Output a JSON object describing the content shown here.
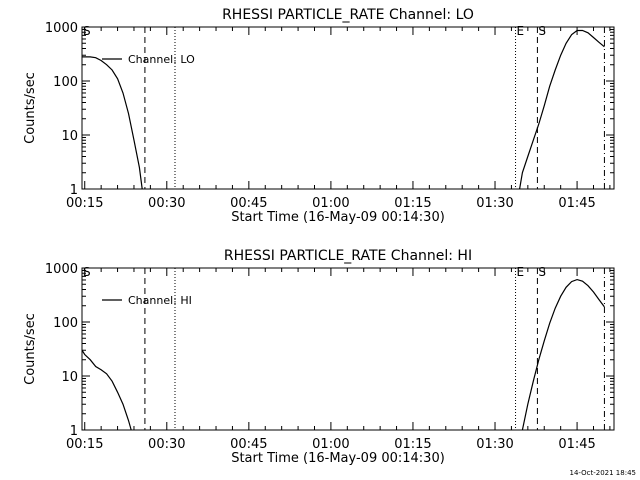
{
  "footer": {
    "timestamp": "14-Oct-2021 18:45"
  },
  "chart_data": [
    {
      "type": "line",
      "title": "RHESSI PARTICLE_RATE Channel: LO",
      "xlabel": "Start Time (16-May-09 00:14:30)",
      "ylabel": "Counts/sec",
      "yscale": "log",
      "ylim": [
        1,
        1000
      ],
      "xlim": [
        "00:14:30",
        "01:51:45"
      ],
      "x_ticks": [
        "00:15",
        "00:30",
        "00:45",
        "01:00",
        "01:15",
        "01:30",
        "01:45"
      ],
      "y_ticks": [
        "1",
        "10",
        "100",
        "1000"
      ],
      "legend": "Channel: LO",
      "markers": [
        {
          "label": "S",
          "time": "00:14:30",
          "style": "dash-dot"
        },
        {
          "label": "",
          "time": "00:26:00",
          "style": "dashed"
        },
        {
          "label": "",
          "time": "00:31:30",
          "style": "dotted"
        },
        {
          "label": "E",
          "time": "01:33:45",
          "style": "dotted"
        },
        {
          "label": "S",
          "time": "01:37:45",
          "style": "dashed"
        },
        {
          "label": "",
          "time": "01:50:00",
          "style": "dash-dot"
        }
      ],
      "series": [
        {
          "segments": [
            [
              [
                "00:14:30",
                280
              ],
              [
                "00:16:00",
                280
              ],
              [
                "00:17:00",
                270
              ],
              [
                "00:18:00",
                240
              ],
              [
                "00:19:00",
                200
              ],
              [
                "00:20:00",
                160
              ],
              [
                "00:21:00",
                110
              ],
              [
                "00:22:00",
                60
              ],
              [
                "00:23:00",
                25
              ],
              [
                "00:24:00",
                8
              ],
              [
                "00:25:00",
                2.5
              ],
              [
                "00:25:30",
                1
              ]
            ],
            [
              [
                "01:34:30",
                1
              ],
              [
                "01:35:00",
                2
              ],
              [
                "01:36:00",
                4
              ],
              [
                "01:37:00",
                8
              ],
              [
                "01:38:00",
                16
              ],
              [
                "01:39:00",
                35
              ],
              [
                "01:40:00",
                80
              ],
              [
                "01:41:00",
                160
              ],
              [
                "01:42:00",
                300
              ],
              [
                "01:43:00",
                500
              ],
              [
                "01:44:00",
                720
              ],
              [
                "01:45:00",
                860
              ],
              [
                "01:46:00",
                860
              ],
              [
                "01:47:00",
                780
              ],
              [
                "01:48:00",
                640
              ],
              [
                "01:49:00",
                520
              ],
              [
                "01:50:00",
                430
              ]
            ]
          ]
        }
      ]
    },
    {
      "type": "line",
      "title": "RHESSI PARTICLE_RATE Channel: HI",
      "xlabel": "Start Time (16-May-09 00:14:30)",
      "ylabel": "Counts/sec",
      "yscale": "log",
      "ylim": [
        1,
        1000
      ],
      "xlim": [
        "00:14:30",
        "01:51:45"
      ],
      "x_ticks": [
        "00:15",
        "00:30",
        "00:45",
        "01:00",
        "01:15",
        "01:30",
        "01:45"
      ],
      "y_ticks": [
        "1",
        "10",
        "100",
        "1000"
      ],
      "legend": "Channel: HI",
      "markers": [
        {
          "label": "S",
          "time": "00:14:30",
          "style": "dash-dot"
        },
        {
          "label": "",
          "time": "00:26:00",
          "style": "dashed"
        },
        {
          "label": "",
          "time": "00:31:30",
          "style": "dotted"
        },
        {
          "label": "E",
          "time": "01:33:45",
          "style": "dotted"
        },
        {
          "label": "S",
          "time": "01:37:45",
          "style": "dashed"
        },
        {
          "label": "",
          "time": "01:50:00",
          "style": "dash-dot"
        }
      ],
      "series": [
        {
          "segments": [
            [
              [
                "00:14:30",
                30
              ],
              [
                "00:15:00",
                25
              ],
              [
                "00:16:00",
                20
              ],
              [
                "00:17:00",
                15
              ],
              [
                "00:18:00",
                13
              ],
              [
                "00:19:00",
                11
              ],
              [
                "00:20:00",
                8
              ],
              [
                "00:21:00",
                5
              ],
              [
                "00:22:00",
                3
              ],
              [
                "00:23:00",
                1.5
              ],
              [
                "00:23:30",
                1
              ]
            ],
            [
              [
                "01:35:00",
                1
              ],
              [
                "01:36:00",
                3
              ],
              [
                "01:37:00",
                8
              ],
              [
                "01:38:00",
                20
              ],
              [
                "01:39:00",
                45
              ],
              [
                "01:40:00",
                95
              ],
              [
                "01:41:00",
                180
              ],
              [
                "01:42:00",
                300
              ],
              [
                "01:43:00",
                440
              ],
              [
                "01:44:00",
                560
              ],
              [
                "01:45:00",
                610
              ],
              [
                "01:46:00",
                570
              ],
              [
                "01:47:00",
                470
              ],
              [
                "01:48:00",
                360
              ],
              [
                "01:49:00",
                260
              ],
              [
                "01:50:00",
                190
              ]
            ]
          ]
        }
      ]
    }
  ]
}
